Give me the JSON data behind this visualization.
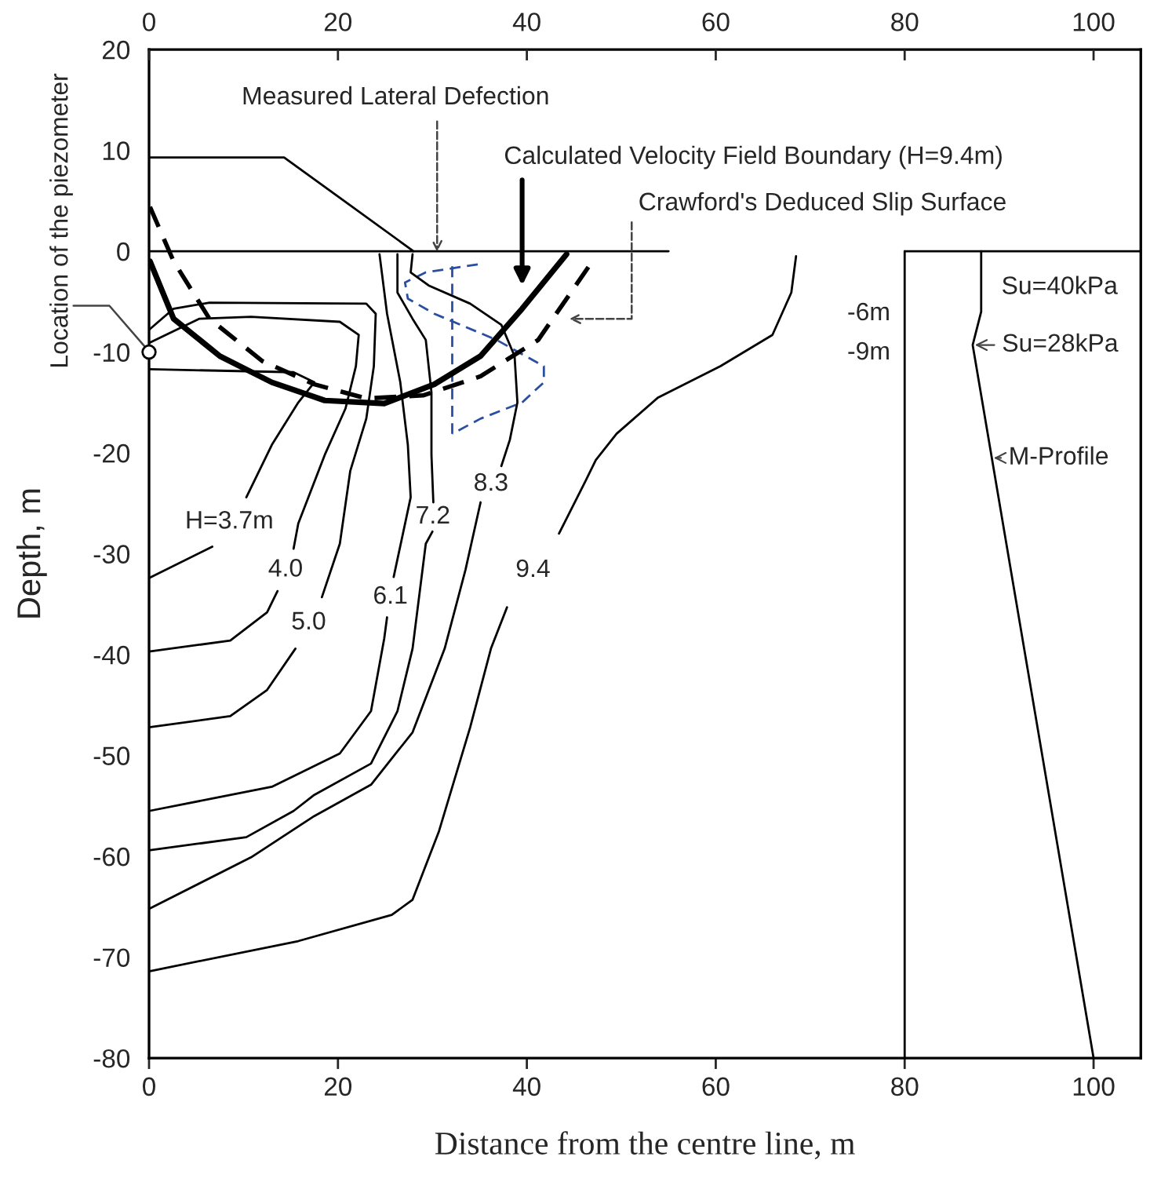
{
  "chart_data": {
    "type": "line",
    "xlabel": "Distance from the centre line, m",
    "ylabel": "Depth, m",
    "xlim": [
      0,
      105
    ],
    "xticks": [
      0,
      20,
      40,
      60,
      80,
      100
    ],
    "x2lim": [
      0,
      105
    ],
    "x2ticks": [
      0,
      20,
      40,
      60,
      80,
      100
    ],
    "ylim": [
      -80,
      20
    ],
    "yticks": [
      -80,
      -70,
      -60,
      -50,
      -40,
      -30,
      -20,
      -10,
      0,
      10,
      20
    ],
    "grid": false,
    "legend": false,
    "series": [
      {
        "color": "#000000",
        "line_style": "solid",
        "x": [
          0,
          14.3,
          28
        ],
        "values": [
          9.3,
          9.3,
          0
        ]
      },
      {
        "color": "#000000",
        "line_style": "solid",
        "x": [
          0,
          55
        ],
        "values": [
          0,
          0
        ]
      },
      {
        "color": "#000000",
        "line_style": "solid",
        "x": [
          80,
          105
        ],
        "values": [
          0,
          0
        ]
      },
      {
        "color": "#000000",
        "line_style": "solid",
        "x": [
          80,
          80
        ],
        "values": [
          0,
          -80
        ]
      },
      {
        "color": "#000000",
        "line_style": "solid",
        "x": [
          88.1,
          88.1,
          87.2,
          100
        ],
        "values": [
          0,
          -6,
          -9.3,
          -80
        ]
      },
      {
        "color": "#2a4ea0",
        "line_style": "dashed",
        "x": [
          34.8,
          29.3,
          27.1,
          27.4,
          30.2,
          36.8,
          41.8,
          41.8,
          39.5,
          35.1,
          32.1
        ],
        "values": [
          -1.3,
          -2.1,
          -3.1,
          -4.7,
          -6.2,
          -8.8,
          -11.4,
          -13,
          -15,
          -16.6,
          -18.1
        ]
      },
      {
        "color": "#2a4ea0",
        "line_style": "dashed",
        "x": [
          32.1,
          32.1
        ],
        "values": [
          -1.5,
          -18.1
        ]
      },
      {
        "color": "#000000",
        "line_style": "solid",
        "x": [
          0.1,
          2.6,
          7.5,
          13,
          18.6,
          24.9,
          30.2,
          35.1,
          39.5,
          44.2
        ],
        "values": [
          -1,
          -6.7,
          -10.4,
          -13,
          -14.8,
          -15.1,
          -13.2,
          -10.4,
          -5.7,
          -0.3
        ]
      },
      {
        "color": "#000000",
        "line_style": "dashed",
        "x": [
          0.1,
          2.6,
          6.4,
          12,
          17.5,
          23,
          29,
          35.1,
          41.2,
          47.3
        ],
        "values": [
          4.4,
          -1,
          -6.7,
          -10.9,
          -13.2,
          -14.6,
          -14.3,
          -12.4,
          -8.8,
          -0.5
        ]
      },
      {
        "name": "H=3.7m",
        "color": "#000000",
        "line_style": "solid",
        "x": [
          0,
          15.3,
          17.5,
          15.8,
          13,
          10.3,
          null,
          6.7,
          0
        ],
        "values": [
          -11.7,
          -12,
          -13,
          -15,
          -19.2,
          -24.4,
          null,
          -29.3,
          -32.4
        ]
      },
      {
        "name": "4.0",
        "color": "#000000",
        "line_style": "solid",
        "x": [
          0,
          5.3,
          10.8,
          20.2,
          22.2,
          21.9,
          20.8,
          18.6,
          15.8,
          15.3,
          null,
          13.6,
          12.5,
          8.6,
          0
        ],
        "values": [
          -9.1,
          -6.7,
          -6.5,
          -7,
          -8.3,
          -11.4,
          -15.6,
          -20.2,
          -27,
          -29.5,
          null,
          -33.7,
          -35.8,
          -38.6,
          -39.7
        ]
      },
      {
        "name": "5.0",
        "color": "#000000",
        "line_style": "solid",
        "x": [
          0,
          2.6,
          6.4,
          23,
          24,
          23.8,
          23,
          21.3,
          20.2,
          18.3,
          null,
          15.5,
          12.5,
          8.6,
          0
        ],
        "values": [
          -7.8,
          -5.7,
          -5.1,
          -5.2,
          -6.2,
          -11.4,
          -16.6,
          -21.8,
          -29,
          -34.3,
          null,
          -39.4,
          -43.5,
          -46.1,
          -47.2
        ]
      },
      {
        "name": "6.1",
        "color": "#000000",
        "line_style": "solid",
        "x": [
          24.4,
          25.2,
          26.6,
          27.4,
          27.7,
          25.9,
          null,
          25.2,
          24.9,
          23.5,
          20.2,
          13,
          0
        ],
        "values": [
          -0.3,
          -6.2,
          -13,
          -19.2,
          -24.4,
          -32.3,
          null,
          -36.3,
          -38.4,
          -45.6,
          -49.8,
          -53.1,
          -55.5
        ]
      },
      {
        "name": "7.2",
        "color": "#000000",
        "line_style": "solid",
        "x": [
          26.3,
          26.3,
          27.9,
          29.3,
          29.9,
          29.9,
          30.1,
          null,
          30.0,
          29.3,
          27.9,
          26.3,
          23.5,
          17.5,
          15.3,
          10.3,
          0
        ],
        "values": [
          -0.3,
          -4.1,
          -6.7,
          -8.8,
          -14,
          -20.2,
          -24.9,
          null,
          -27.8,
          -29,
          -39.4,
          -45.6,
          -50.8,
          -53.9,
          -55.5,
          -58.1,
          -59.4
        ]
      },
      {
        "name": "8.3",
        "color": "#000000",
        "line_style": "solid",
        "x": [
          27.9,
          27.7,
          29.6,
          34,
          37.3,
          38.7,
          39,
          38.2,
          37.3,
          null,
          35.1,
          33.5,
          31.3,
          27.9,
          23.5,
          17.5,
          10.8,
          0
        ],
        "values": [
          -0.3,
          -2.1,
          -3.4,
          -5.2,
          -7.3,
          -10.4,
          -15,
          -18.7,
          -21.3,
          null,
          -24.9,
          -31.6,
          -39.4,
          -47.7,
          -52.9,
          -56,
          -60.1,
          -65.2
        ]
      },
      {
        "name": "9.4",
        "color": "#000000",
        "line_style": "solid",
        "x": [
          68.5,
          68,
          66,
          60.5,
          53.9,
          49.5,
          47.3,
          46.2,
          43.4,
          null,
          37.9,
          36.2,
          34,
          30.7,
          27.9,
          25.7,
          15.8,
          0
        ],
        "values": [
          -0.5,
          -4.1,
          -8.3,
          -11.4,
          -14.5,
          -18.1,
          -20.7,
          -22.8,
          -28,
          null,
          -35.3,
          -39.4,
          -47.2,
          -57.5,
          -64.3,
          -65.8,
          -68.4,
          -71.4
        ]
      },
      {
        "type": "scatter",
        "marker": "circle",
        "color": "#000000",
        "x": [
          0
        ],
        "values": [
          -10
        ]
      }
    ],
    "annotations": [
      {
        "text": "Measured Lateral Defection",
        "x": 30.5,
        "y": -0.5
      },
      "Calculated Velocity Field Boundary (H=9.4m)",
      "Crawford's Deduced Slip Surface",
      "Su=40kPa",
      {
        "text": "Su=28kPa",
        "x": 87.2,
        "y": -9.3
      },
      {
        "text": "M-Profile",
        "x": 89.2,
        "y": -20.5
      },
      "-6m",
      "-9m",
      {
        "text": "Location of the piezometer",
        "x": 0,
        "y": -10
      }
    ]
  }
}
